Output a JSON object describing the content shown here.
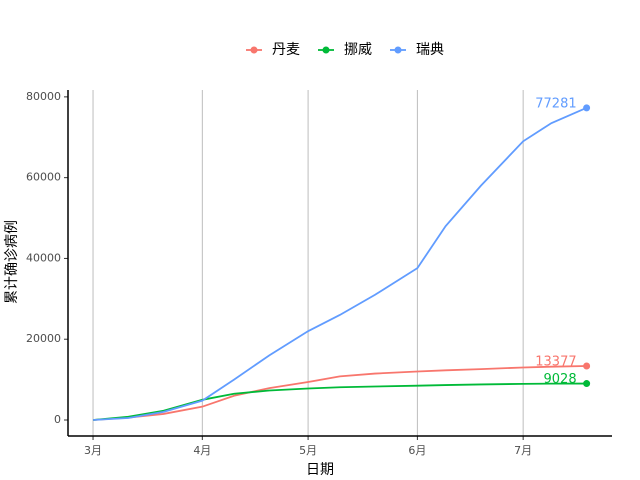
{
  "chart_data": {
    "type": "line",
    "x_label": "日期",
    "y_label": "累计确诊病例",
    "x": [
      0,
      10,
      20,
      31,
      40,
      50,
      61,
      70,
      80,
      92,
      100,
      110,
      122,
      130,
      140
    ],
    "series": [
      {
        "name": "丹麦",
        "color": "#F8766D",
        "values": [
          0,
          600,
          1500,
          3300,
          6000,
          7900,
          9400,
          10800,
          11500,
          12000,
          12300,
          12600,
          13000,
          13200,
          13377
        ]
      },
      {
        "name": "挪威",
        "color": "#00BA38",
        "values": [
          0,
          800,
          2300,
          5000,
          6500,
          7300,
          7800,
          8100,
          8300,
          8500,
          8650,
          8800,
          8950,
          9000,
          9028
        ]
      },
      {
        "name": "瑞典",
        "color": "#619CFF",
        "values": [
          0,
          500,
          2000,
          4800,
          10000,
          16000,
          22000,
          26000,
          31000,
          37600,
          48000,
          58000,
          69000,
          73500,
          77281
        ]
      }
    ],
    "xlim": [
      -7.1,
      147.2
    ],
    "ylim": [
      -3960,
      81700
    ],
    "xticks": [
      {
        "value": 0,
        "label": "3月"
      },
      {
        "value": 31,
        "label": "4月"
      },
      {
        "value": 61,
        "label": "5月"
      },
      {
        "value": 92,
        "label": "6月"
      },
      {
        "value": 122,
        "label": "7月"
      }
    ],
    "yticks": [
      0,
      20000,
      40000,
      60000,
      80000
    ],
    "grid": "x",
    "legend": "top"
  }
}
